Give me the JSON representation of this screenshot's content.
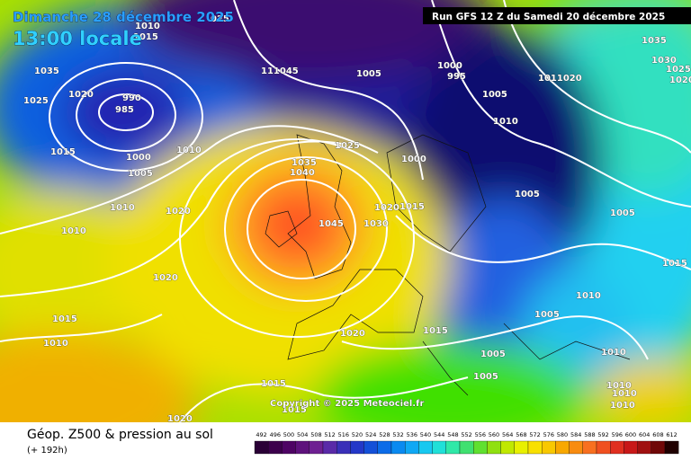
{
  "header": {
    "date": "Dimanche 28 décembre 2025",
    "time": "13:00 locale",
    "run": "Run GFS 12 Z du Samedi 20 décembre 2025"
  },
  "map": {
    "copyright": "Copyright © 2025 Meteociel.fr",
    "isobar_labels": [
      "1035",
      "1025",
      "1020",
      "990",
      "985",
      "1015",
      "1000",
      "1005",
      "1010",
      "1010",
      "1010",
      "1020",
      "1020",
      "1015",
      "1010",
      "1015",
      "1020",
      "1015",
      "1010",
      "1015",
      "025",
      "111045",
      "1005",
      "1025",
      "1035",
      "1040",
      "1045",
      "1030",
      "1020",
      "1015",
      "1000",
      "1000",
      "995",
      "1005",
      "1011020",
      "1010",
      "1005",
      "1005",
      "1015",
      "1010",
      "1005",
      "1015",
      "1020",
      "1005",
      "1005",
      "1010",
      "1010",
      "1010",
      "1010",
      "1035",
      "1030",
      "1025",
      "1020"
    ]
  },
  "footer": {
    "title": "Géop. Z500 & pression au sol",
    "lead": "(+ 192h)"
  },
  "legend": {
    "ticks": [
      492,
      496,
      500,
      504,
      508,
      512,
      516,
      520,
      524,
      528,
      532,
      536,
      540,
      544,
      548,
      552,
      556,
      560,
      564,
      568,
      572,
      576,
      580,
      584,
      588,
      592,
      596,
      600,
      604,
      608,
      612
    ],
    "colors": [
      "#2a0036",
      "#3c004c",
      "#4e0464",
      "#5e127c",
      "#6e2092",
      "#5a2aa8",
      "#3a30b8",
      "#2438c8",
      "#1450d8",
      "#0c6ce8",
      "#0a8af0",
      "#10a8f4",
      "#18c8f0",
      "#20e0d8",
      "#30e8a8",
      "#40e070",
      "#60e030",
      "#90e010",
      "#c0e800",
      "#e8f000",
      "#f8e000",
      "#f8c800",
      "#f8a800",
      "#f88c10",
      "#f87020",
      "#f05020",
      "#e03020",
      "#c81818",
      "#a01010",
      "#700808",
      "#200000"
    ]
  }
}
